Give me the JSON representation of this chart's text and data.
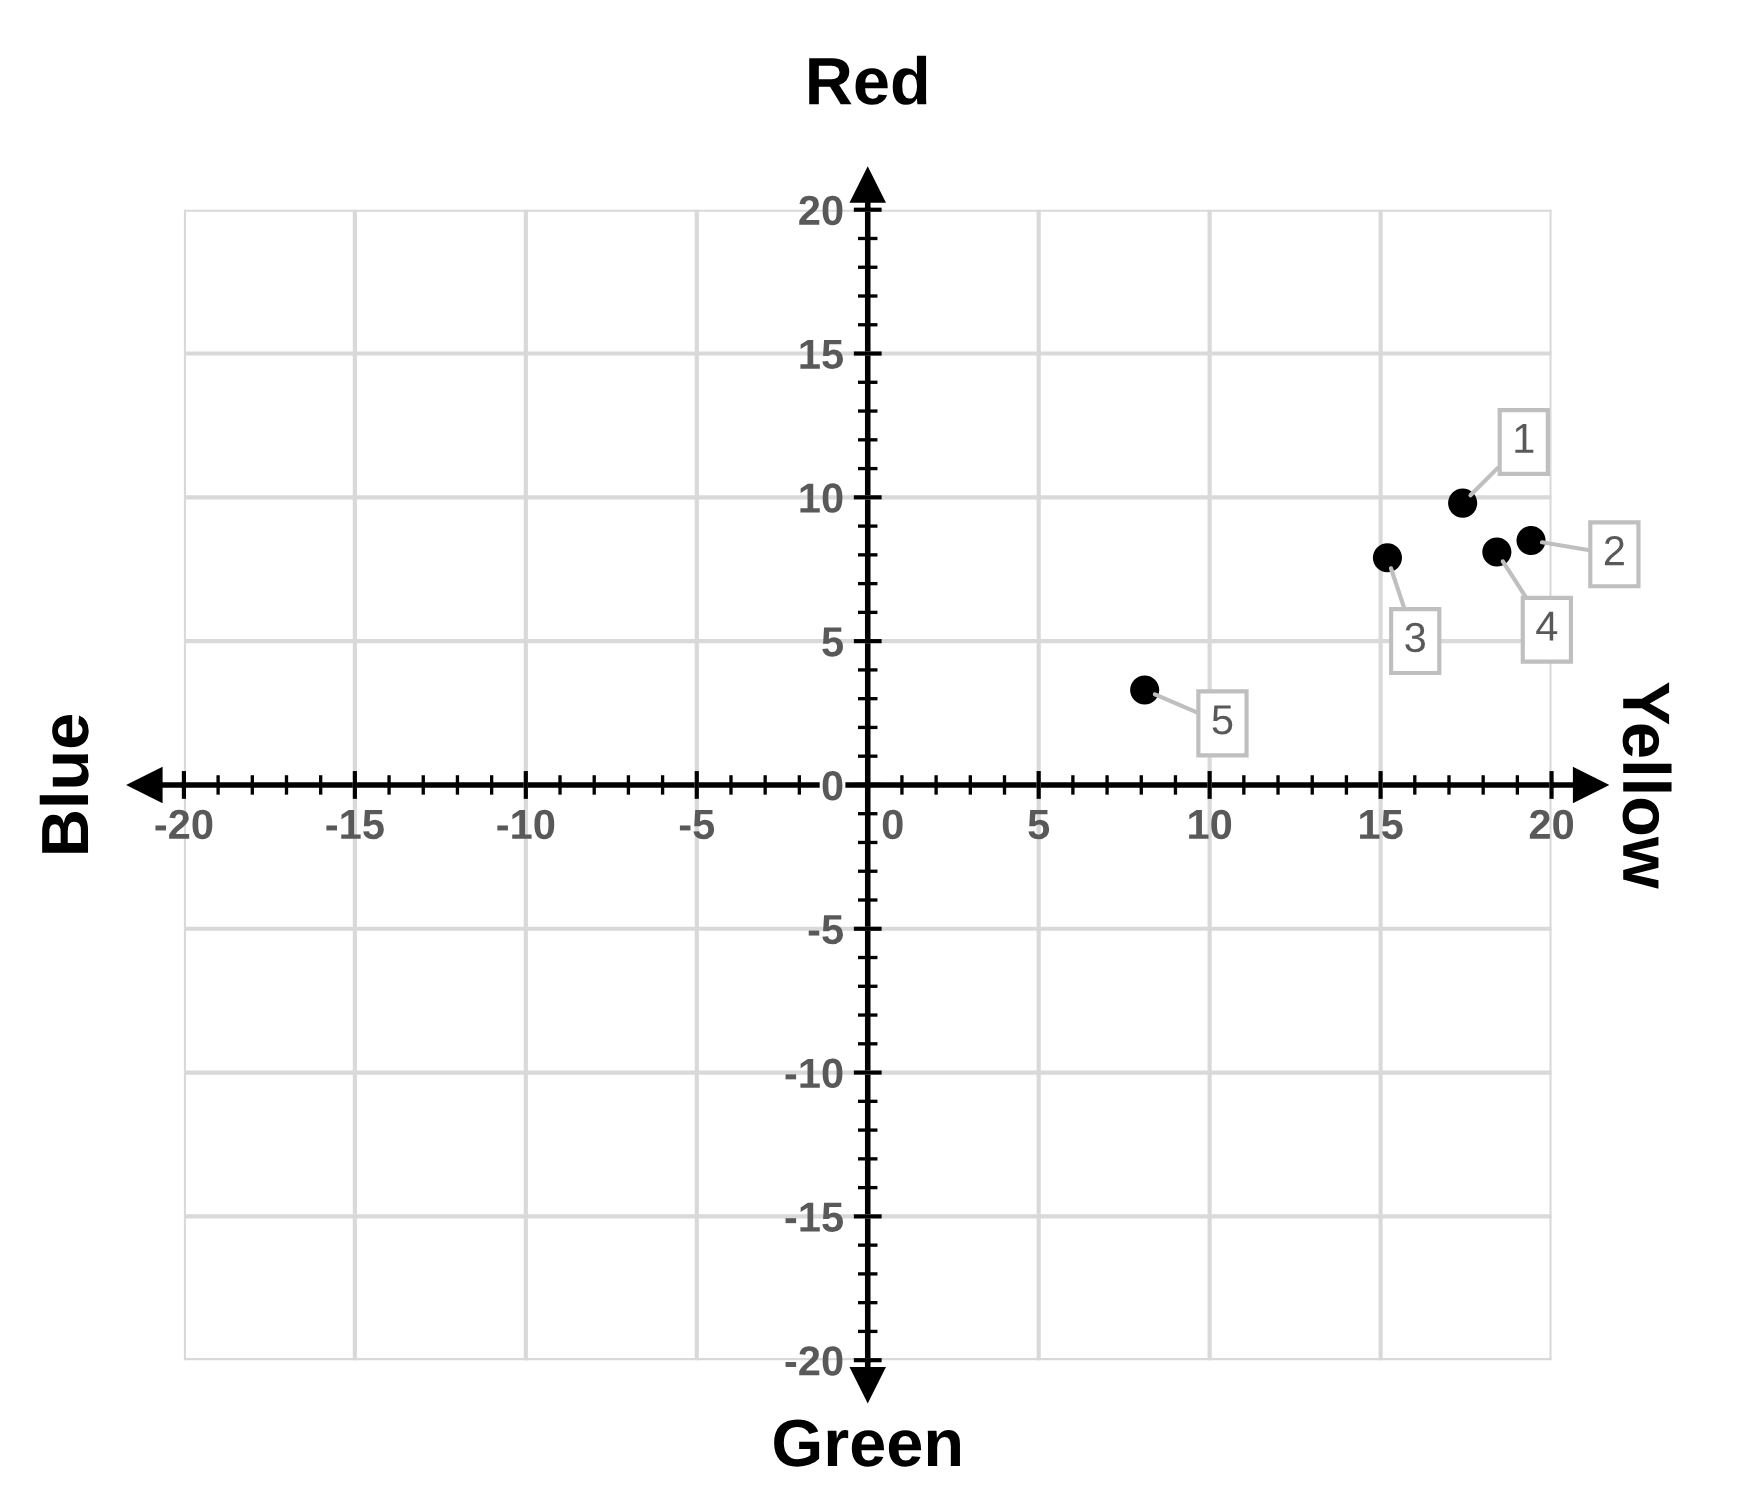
{
  "chart_data": {
    "type": "scatter",
    "title": "Red",
    "xlabel": "Green",
    "ylabel": "Blue",
    "annotations": [
      "Yellow",
      {
        "text": "1",
        "x": 17.4,
        "y": 9.8
      },
      {
        "text": "2",
        "x": 19.4,
        "y": 8.5
      },
      {
        "text": "3",
        "x": 15.2,
        "y": 7.9
      },
      {
        "text": "4",
        "x": 18.4,
        "y": 8.1
      },
      {
        "text": "5",
        "x": 8.1,
        "y": 3.3
      }
    ],
    "series": [
      {
        "color": "#000000",
        "x": [
          17.4,
          19.4,
          15.2,
          18.4,
          8.1
        ],
        "values": [
          9.8,
          8.5,
          7.9,
          8.1,
          3.3
        ]
      }
    ],
    "xlim": [
      -20,
      20
    ],
    "ylim": [
      -20,
      20
    ],
    "xticks": [
      -20,
      -15,
      -10,
      -5,
      0,
      5,
      10,
      15,
      20
    ],
    "yticks": [
      -20,
      -15,
      -10,
      -5,
      0,
      5,
      10,
      15,
      20
    ],
    "grid": true,
    "marker": "circle"
  }
}
